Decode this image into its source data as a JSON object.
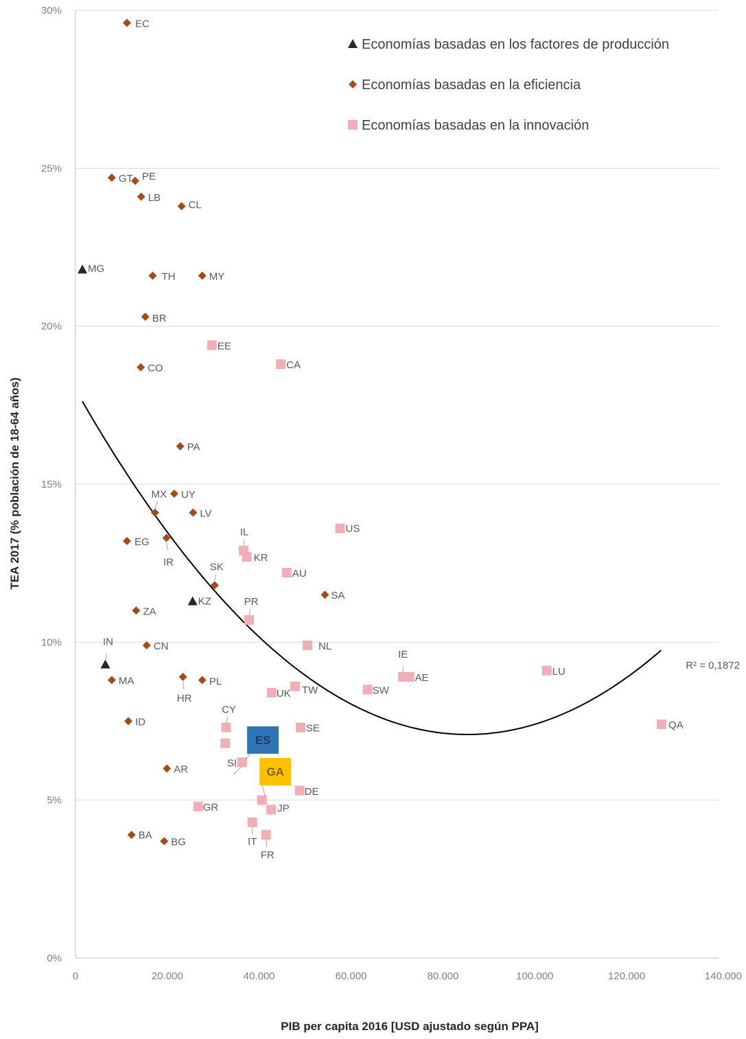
{
  "chart_data": {
    "type": "scatter",
    "title": "",
    "xlabel": "PIB per capita 2016 [USD ajustado según PPA]",
    "ylabel": "TEA 2017 (% población de 18-64 años)",
    "xlim": [
      0,
      140000
    ],
    "ylim": [
      0,
      30
    ],
    "x_ticks": [
      "0",
      "20.000",
      "40.000",
      "60.000",
      "80.000",
      "100.000",
      "120.000",
      "140.000"
    ],
    "y_ticks": [
      "0%",
      "5%",
      "10%",
      "15%",
      "20%",
      "25%",
      "30%"
    ],
    "grid": "horizontal",
    "legend_position": "top-right",
    "colors": {
      "factores": "#262626",
      "eficiencia": "#a64a16",
      "innovacion": "#f2aeb5",
      "es_box": "#2e75b6",
      "ga_box": "#ffc000",
      "trend": "#000000"
    },
    "series": [
      {
        "name": "Economías basadas en los factores de producción",
        "marker": "triangle",
        "points": [
          {
            "label": "MG",
            "x": 1500,
            "y": 21.8
          },
          {
            "label": "KZ",
            "x": 25500,
            "y": 11.3
          },
          {
            "label": "IN",
            "x": 6500,
            "y": 9.3
          }
        ]
      },
      {
        "name": "Economías basadas en la eficiencia",
        "marker": "diamond",
        "points": [
          {
            "label": "EC",
            "x": 11200,
            "y": 29.6
          },
          {
            "label": "GT",
            "x": 7900,
            "y": 24.7
          },
          {
            "label": "PE",
            "x": 13000,
            "y": 24.6
          },
          {
            "label": "LB",
            "x": 14300,
            "y": 24.1
          },
          {
            "label": "CL",
            "x": 23100,
            "y": 23.8
          },
          {
            "label": "TH",
            "x": 16800,
            "y": 21.6
          },
          {
            "label": "MY",
            "x": 27600,
            "y": 21.6
          },
          {
            "label": "BR",
            "x": 15200,
            "y": 20.3
          },
          {
            "label": "CO",
            "x": 14200,
            "y": 18.7
          },
          {
            "label": "PA",
            "x": 22800,
            "y": 16.2
          },
          {
            "label": "MX",
            "x": 17300,
            "y": 14.1
          },
          {
            "label": "UY",
            "x": 21500,
            "y": 14.7
          },
          {
            "label": "LV",
            "x": 25600,
            "y": 14.1
          },
          {
            "label": "EG",
            "x": 11200,
            "y": 13.2
          },
          {
            "label": "IR",
            "x": 19800,
            "y": 13.3
          },
          {
            "label": "SK",
            "x": 30300,
            "y": 11.8
          },
          {
            "label": "ZA",
            "x": 13200,
            "y": 11.0
          },
          {
            "label": "SA",
            "x": 54300,
            "y": 11.5
          },
          {
            "label": "CN",
            "x": 15500,
            "y": 9.9
          },
          {
            "label": "MA",
            "x": 7900,
            "y": 8.8
          },
          {
            "label": "HR",
            "x": 23400,
            "y": 8.9
          },
          {
            "label": "PL",
            "x": 27600,
            "y": 8.8
          },
          {
            "label": "ID",
            "x": 11500,
            "y": 7.5
          },
          {
            "label": "AR",
            "x": 19900,
            "y": 6.0
          },
          {
            "label": "BA",
            "x": 12200,
            "y": 3.9
          },
          {
            "label": "BG",
            "x": 19300,
            "y": 3.7
          }
        ]
      },
      {
        "name": "Economías basadas en la innovación",
        "marker": "square",
        "points": [
          {
            "label": "EE",
            "x": 29700,
            "y": 19.4
          },
          {
            "label": "CA",
            "x": 44700,
            "y": 18.8
          },
          {
            "label": "US",
            "x": 57600,
            "y": 13.6
          },
          {
            "label": "IL",
            "x": 36600,
            "y": 12.9
          },
          {
            "label": "KR",
            "x": 37300,
            "y": 12.7
          },
          {
            "label": "AU",
            "x": 46000,
            "y": 12.2
          },
          {
            "label": "PR",
            "x": 37800,
            "y": 10.7
          },
          {
            "label": "NL",
            "x": 50500,
            "y": 9.9
          },
          {
            "label": "IE",
            "x": 71300,
            "y": 8.9
          },
          {
            "label": "AE",
            "x": 72700,
            "y": 8.9
          },
          {
            "label": "LU",
            "x": 102600,
            "y": 9.1
          },
          {
            "label": "SW",
            "x": 63600,
            "y": 8.5
          },
          {
            "label": "UK",
            "x": 42700,
            "y": 8.4
          },
          {
            "label": "TW",
            "x": 47800,
            "y": 8.6
          },
          {
            "label": "CY",
            "x": 32800,
            "y": 7.3
          },
          {
            "label": "SE",
            "x": 49000,
            "y": 7.3
          },
          {
            "label": "QA",
            "x": 127600,
            "y": 7.4
          },
          {
            "label": "",
            "x": 32600,
            "y": 6.8
          },
          {
            "label": "SI",
            "x": 36300,
            "y": 6.2
          },
          {
            "label": "DE",
            "x": 48800,
            "y": 5.3
          },
          {
            "label": "",
            "x": 40600,
            "y": 5.0
          },
          {
            "label": "JP",
            "x": 42600,
            "y": 4.7
          },
          {
            "label": "GR",
            "x": 26700,
            "y": 4.8
          },
          {
            "label": "IT",
            "x": 38500,
            "y": 4.3
          },
          {
            "label": "FR",
            "x": 41500,
            "y": 3.9
          }
        ]
      }
    ],
    "highlights": [
      {
        "label": "ES",
        "x": 40800,
        "y": 6.9,
        "points_to": {
          "x": 36300,
          "y": 6.2
        }
      },
      {
        "label": "GA",
        "x": 43500,
        "y": 5.9,
        "points_to": {
          "x": 40600,
          "y": 5.0
        }
      }
    ],
    "trendline": {
      "type": "polynomial-2",
      "r2_label": "R² = 0,1872",
      "x_range": [
        1500,
        127500
      ],
      "coefficients": {
        "a": 1.5e-09,
        "b": -0.000256,
        "c": 18.0
      }
    }
  }
}
